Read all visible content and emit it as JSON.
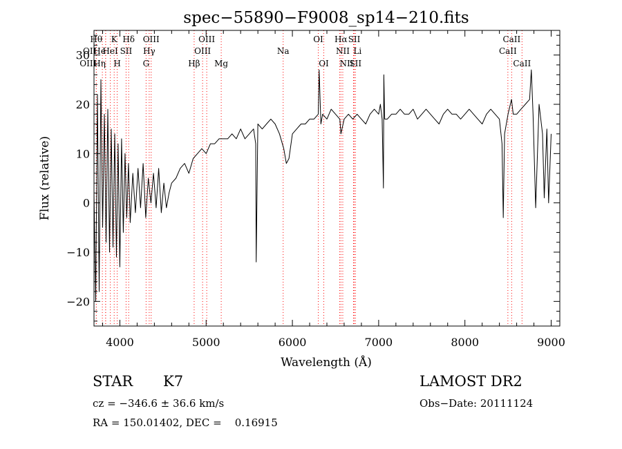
{
  "chart_data": {
    "type": "line",
    "title": "spec−55890−F9008_sp14−210.fits",
    "xlabel": "Wavelength (Å)",
    "ylabel": "Flux (relative)",
    "xlim": [
      3700,
      9100
    ],
    "ylim": [
      -25,
      35
    ],
    "xticks": [
      4000,
      5000,
      6000,
      7000,
      8000,
      9000
    ],
    "yticks": [
      -20,
      -10,
      0,
      10,
      20,
      30
    ],
    "ytick_labels": [
      "−20",
      "−10",
      "0",
      "10",
      "20",
      "30"
    ],
    "series": [
      {
        "name": "flux",
        "x": [
          3700,
          3720,
          3740,
          3760,
          3780,
          3800,
          3820,
          3840,
          3860,
          3880,
          3900,
          3920,
          3940,
          3960,
          3980,
          4000,
          4020,
          4040,
          4060,
          4080,
          4100,
          4120,
          4150,
          4180,
          4210,
          4240,
          4270,
          4300,
          4330,
          4360,
          4390,
          4420,
          4450,
          4480,
          4510,
          4540,
          4570,
          4600,
          4650,
          4700,
          4750,
          4800,
          4850,
          4900,
          4950,
          5000,
          5050,
          5100,
          5150,
          5200,
          5250,
          5300,
          5350,
          5400,
          5450,
          5500,
          5550,
          5575,
          5580,
          5600,
          5650,
          5700,
          5750,
          5800,
          5850,
          5900,
          5930,
          5960,
          6000,
          6050,
          6100,
          6150,
          6200,
          6250,
          6300,
          6310,
          6330,
          6350,
          6400,
          6450,
          6500,
          6550,
          6563,
          6600,
          6650,
          6700,
          6750,
          6800,
          6850,
          6900,
          6950,
          7000,
          7020,
          7040,
          7055,
          7060,
          7070,
          7100,
          7150,
          7200,
          7250,
          7300,
          7350,
          7400,
          7450,
          7500,
          7550,
          7600,
          7650,
          7700,
          7750,
          7800,
          7850,
          7900,
          7950,
          8000,
          8050,
          8100,
          8150,
          8200,
          8250,
          8300,
          8350,
          8400,
          8430,
          8445,
          8460,
          8500,
          8540,
          8560,
          8600,
          8650,
          8700,
          8750,
          8770,
          8790,
          8820,
          8860,
          8900,
          8920,
          8950,
          8970,
          9000
        ],
        "y": [
          2,
          -20,
          22,
          -18,
          25,
          -5,
          18,
          -8,
          19,
          -10,
          15,
          -9,
          14,
          -11,
          12,
          -13,
          13,
          -6,
          10,
          -3,
          8,
          -4,
          6,
          -2,
          7,
          -1,
          8,
          -3,
          5,
          0,
          6,
          -1,
          7,
          -2,
          4,
          -1,
          2,
          4,
          5,
          7,
          8,
          6,
          9,
          10,
          11,
          10,
          12,
          12,
          13,
          13,
          13,
          14,
          13,
          15,
          13,
          14,
          15,
          12,
          -12,
          16,
          15,
          16,
          17,
          16,
          14,
          11,
          8,
          9,
          14,
          15,
          16,
          16,
          17,
          17,
          18,
          27,
          16,
          18,
          17,
          19,
          18,
          17,
          14,
          17,
          18,
          17,
          18,
          17,
          16,
          18,
          19,
          18,
          20,
          17,
          3,
          26,
          17,
          17,
          18,
          18,
          19,
          18,
          18,
          19,
          17,
          18,
          19,
          18,
          17,
          16,
          18,
          19,
          18,
          18,
          17,
          18,
          19,
          18,
          17,
          16,
          18,
          19,
          18,
          17,
          12,
          -3,
          14,
          18,
          21,
          18,
          18,
          19,
          20,
          21,
          27,
          18,
          -1,
          20,
          14,
          1,
          15,
          0,
          14
        ]
      }
    ],
    "line_markers": [
      {
        "label": "Hθ",
        "x": 3797,
        "row": 0,
        "align": "end"
      },
      {
        "label": "OII",
        "x": 3727,
        "row": 1,
        "align": "end"
      },
      {
        "label": "OIII",
        "x": 3727,
        "row": 2,
        "align": "end"
      },
      {
        "label": "He",
        "x": 3835,
        "row": 1,
        "align": "end"
      },
      {
        "label": "Hη",
        "x": 3835,
        "row": 2,
        "align": "end"
      },
      {
        "label": "K",
        "x": 3934,
        "row": 0,
        "align": "middle"
      },
      {
        "label": "HeI",
        "x": 3889,
        "row": 1,
        "align": "middle"
      },
      {
        "label": "H",
        "x": 3969,
        "row": 2,
        "align": "middle"
      },
      {
        "label": "SII",
        "x": 4072,
        "row": 1,
        "align": "middle"
      },
      {
        "label": "Hδ",
        "x": 4102,
        "row": 0,
        "align": "middle"
      },
      {
        "label": "OIII",
        "x": 4363,
        "row": 0,
        "align": "middle"
      },
      {
        "label": "Hγ",
        "x": 4340,
        "row": 1,
        "align": "middle"
      },
      {
        "label": "G",
        "x": 4304,
        "row": 2,
        "align": "middle"
      },
      {
        "label": "Hβ",
        "x": 4861,
        "row": 2,
        "align": "middle"
      },
      {
        "label": "OIII",
        "x": 5007,
        "row": 0,
        "align": "middle"
      },
      {
        "label": "OIII",
        "x": 4959,
        "row": 1,
        "align": "middle"
      },
      {
        "label": "Mg",
        "x": 5175,
        "row": 2,
        "align": "middle"
      },
      {
        "label": "Na",
        "x": 5893,
        "row": 1,
        "align": "middle"
      },
      {
        "label": "OI",
        "x": 6300,
        "row": 0,
        "align": "middle"
      },
      {
        "label": "OI",
        "x": 6364,
        "row": 2,
        "align": "middle"
      },
      {
        "label": "Hα",
        "x": 6563,
        "row": 0,
        "align": "middle"
      },
      {
        "label": "NII",
        "x": 6584,
        "row": 1,
        "align": "middle"
      },
      {
        "label": "NII",
        "x": 6548,
        "row": 2,
        "align": "start"
      },
      {
        "label": "SII",
        "x": 6717,
        "row": 0,
        "align": "middle"
      },
      {
        "label": "Li",
        "x": 6708,
        "row": 1,
        "align": "start"
      },
      {
        "label": "SII",
        "x": 6731,
        "row": 2,
        "align": "middle"
      },
      {
        "label": "CaII",
        "x": 8542,
        "row": 0,
        "align": "middle"
      },
      {
        "label": "CaII",
        "x": 8498,
        "row": 1,
        "align": "middle"
      },
      {
        "label": "CaII",
        "x": 8662,
        "row": 2,
        "align": "middle"
      }
    ],
    "grid": false,
    "line_color": "#000000",
    "marker_color": "#ff0000"
  },
  "info": {
    "object_class": "STAR",
    "subclass": "K7",
    "survey": "LAMOST DR2",
    "cz": "cz = −346.6 ± 36.6 km/s",
    "obs_date": "Obs−Date: 20111124",
    "coords": "RA = 150.01402, DEC =    0.16915"
  }
}
